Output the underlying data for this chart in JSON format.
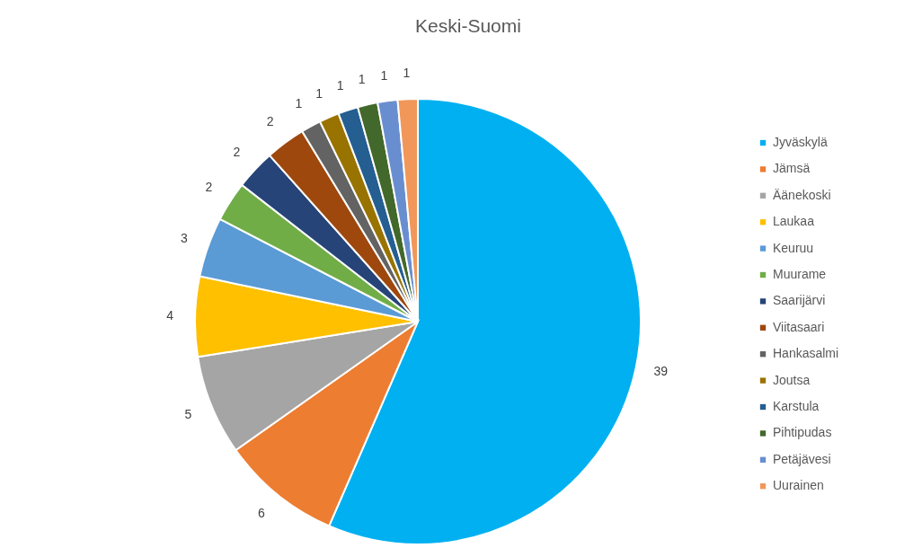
{
  "chart_data": {
    "type": "pie",
    "title": "Keski-Suomi",
    "categories": [
      "Jyväskylä",
      "Jämsä",
      "Äänekoski",
      "Laukaa",
      "Keuruu",
      "Muurame",
      "Saarijärvi",
      "Viitasaari",
      "Hankasalmi",
      "Joutsa",
      "Karstula",
      "Pihtipudas",
      "Petäjävesi",
      "Uurainen"
    ],
    "values": [
      39,
      6,
      5,
      4,
      3,
      2,
      2,
      2,
      1,
      1,
      1,
      1,
      1,
      1
    ],
    "colors": [
      "#00b0f0",
      "#ed7d31",
      "#a5a5a5",
      "#ffc000",
      "#5b9bd5",
      "#70ad47",
      "#264478",
      "#9e480e",
      "#636363",
      "#997300",
      "#255e91",
      "#43682b",
      "#698ed0",
      "#f1975a"
    ],
    "data_labels": true,
    "legend": "right"
  }
}
